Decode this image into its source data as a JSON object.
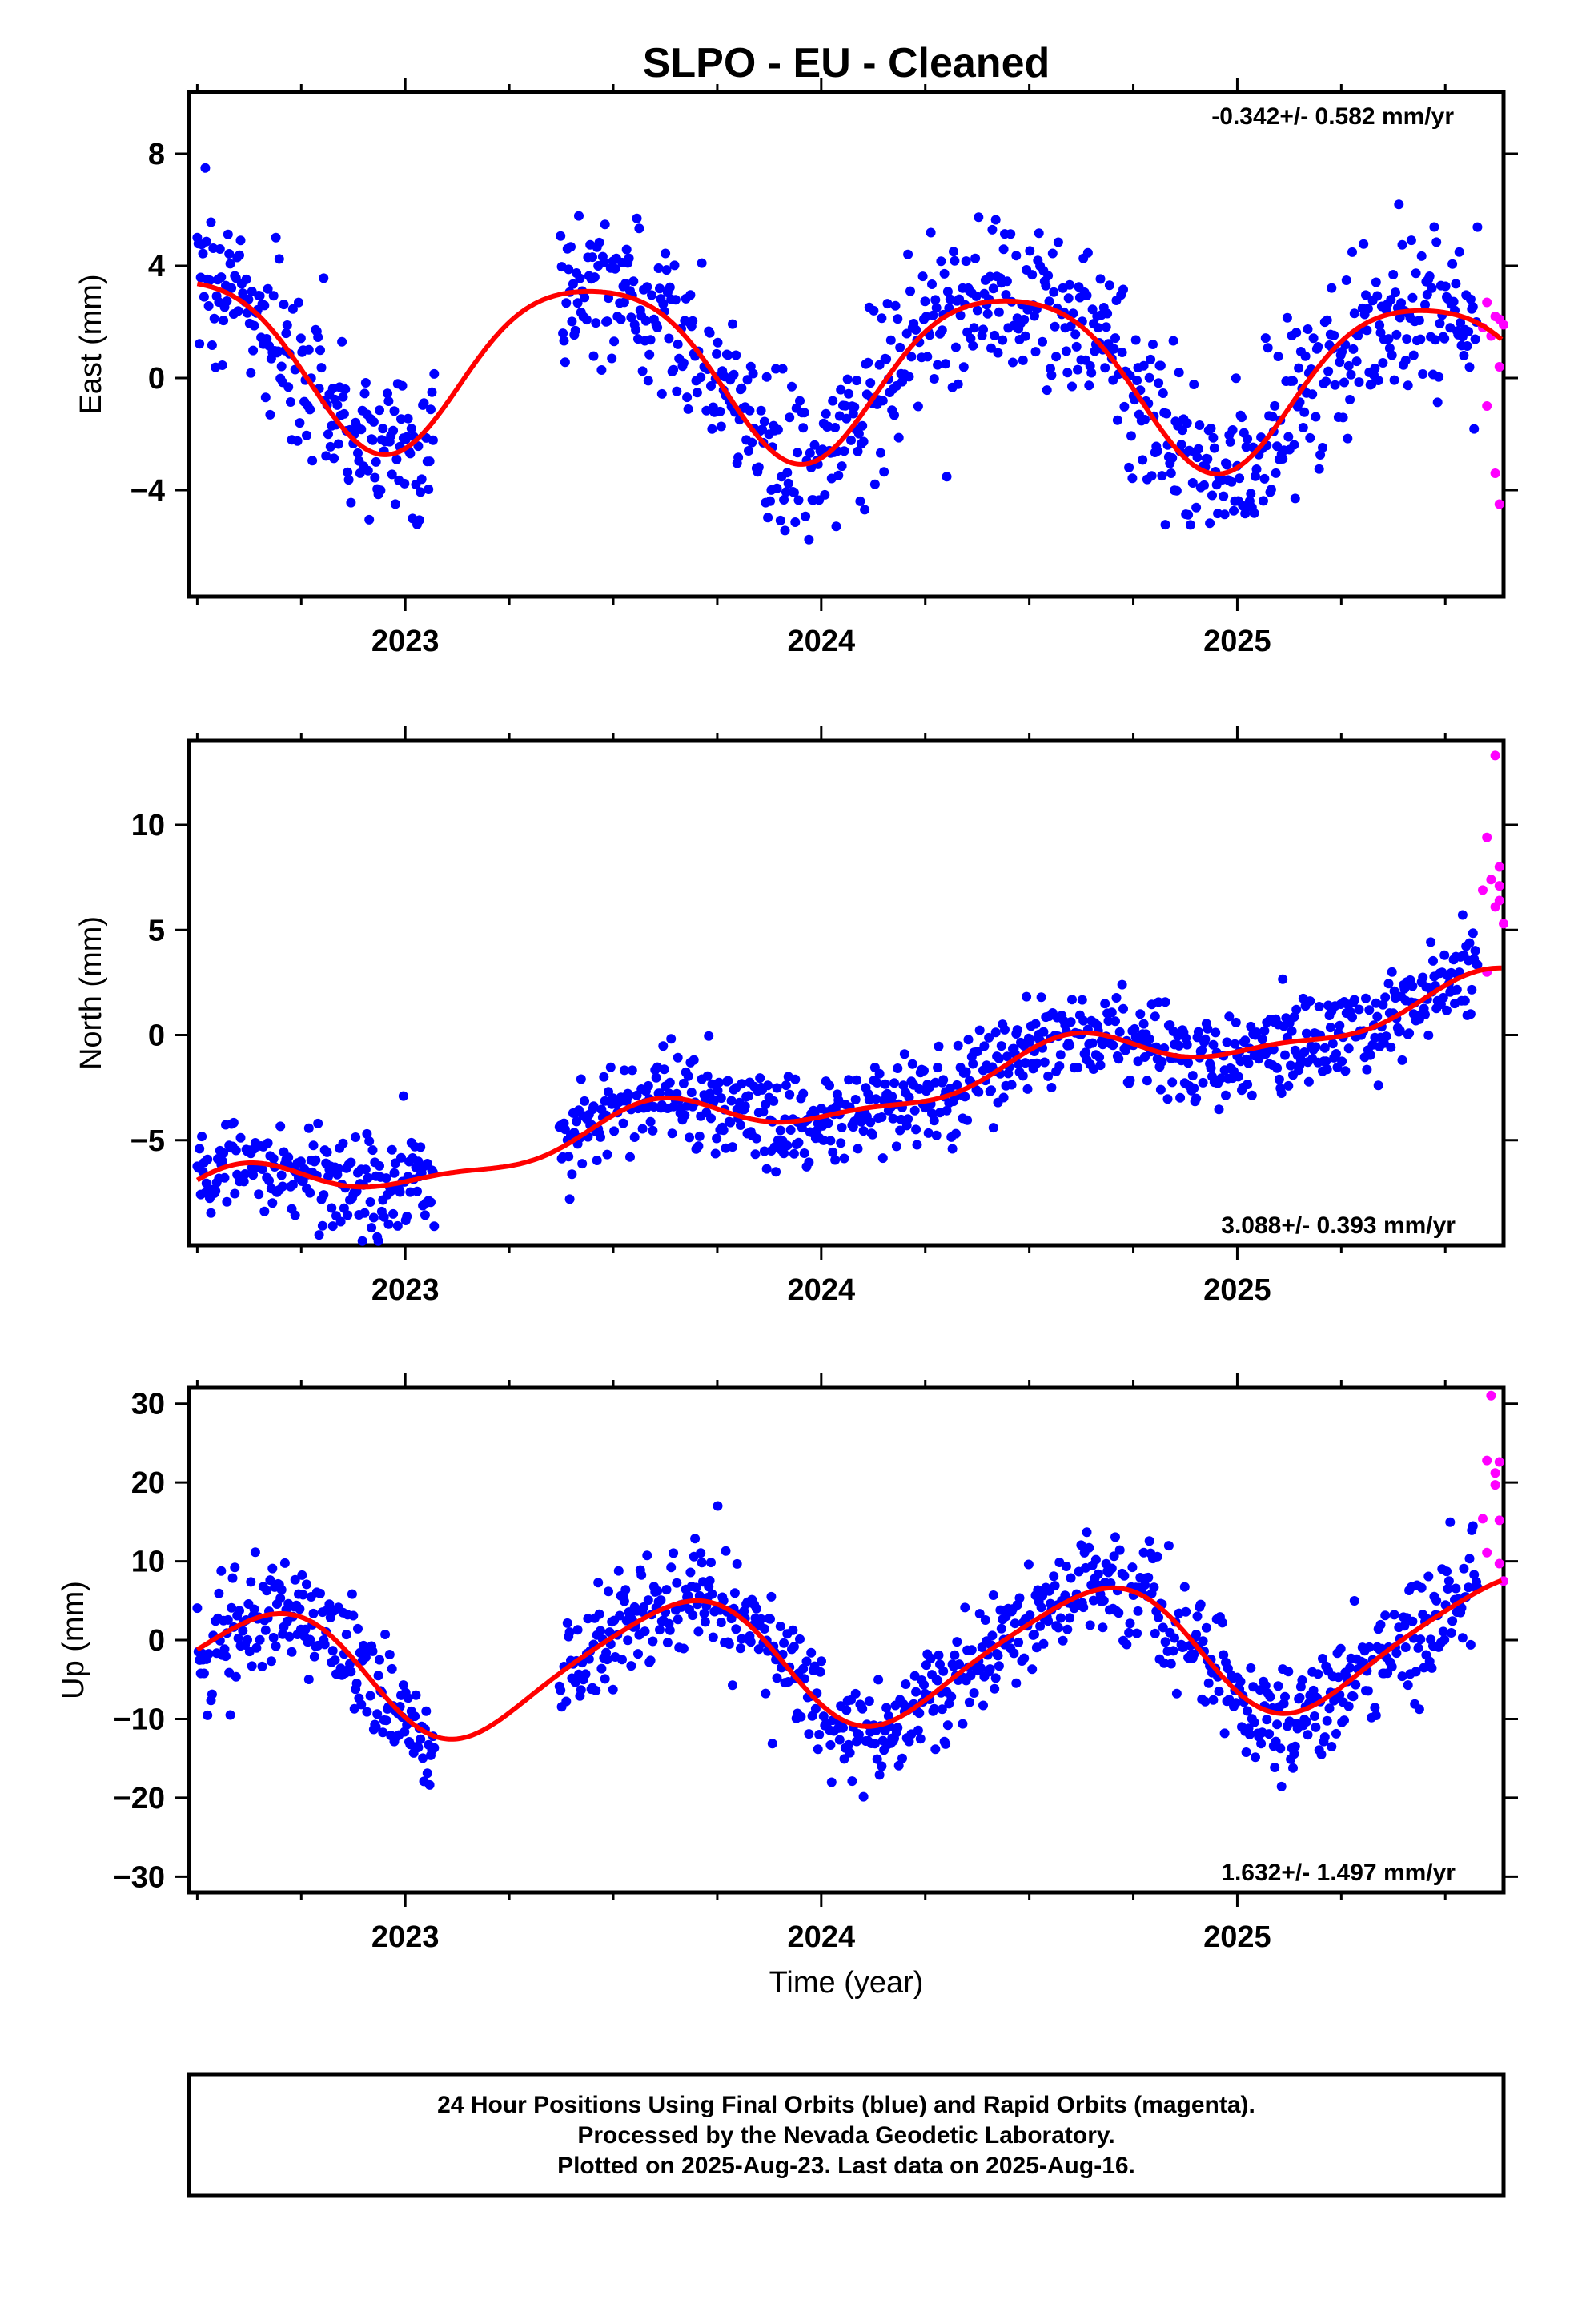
{
  "chart_data": {
    "type": "scatter",
    "title": "SLPO  - EU - Cleaned",
    "xlabel": "Time (year)",
    "xlim": [
      2022.48,
      2025.64
    ],
    "x_ticks": [
      "2023",
      "2024",
      "2025"
    ],
    "colors": {
      "final": "#0000ff",
      "rapid": "#ff00ff",
      "fit": "#ff0000"
    },
    "panels": [
      {
        "ylabel": "East (mm)",
        "ylim": [
          -7.8,
          10.2
        ],
        "y_ticks": [
          -4,
          0,
          4,
          8
        ],
        "rate_label": "-0.342+/- 0.582 mm/yr",
        "rate_position": "top-right",
        "model": {
          "trend": -0.342,
          "ann_amp": 3.0,
          "ann_phase": 2023.45,
          "semi_amp": 0.5,
          "semi_phase": 2023.2,
          "offset": 0.4,
          "noise": 1.5
        },
        "rapid_points": [
          [
            2025.59,
            1.8
          ],
          [
            2025.6,
            2.7
          ],
          [
            2025.6,
            -1.0
          ],
          [
            2025.61,
            1.5
          ],
          [
            2025.62,
            2.2
          ],
          [
            2025.62,
            -3.4
          ],
          [
            2025.63,
            2.1
          ],
          [
            2025.63,
            -4.5
          ],
          [
            2025.64,
            1.9
          ],
          [
            2025.63,
            0.4
          ]
        ]
      },
      {
        "ylabel": "North (mm)",
        "ylim": [
          -10,
          14
        ],
        "y_ticks": [
          -5,
          0,
          5,
          10
        ],
        "rate_label": "3.088+/- 0.393 mm/yr",
        "rate_position": "bottom-right",
        "model": {
          "trend": 3.088,
          "ann_amp": 1.0,
          "ann_phase": 2023.6,
          "semi_amp": 0.4,
          "semi_phase": 2023.1,
          "offset": -3.2,
          "noise": 1.1
        },
        "rapid_points": [
          [
            2025.59,
            6.9
          ],
          [
            2025.6,
            9.4
          ],
          [
            2025.6,
            3.0
          ],
          [
            2025.61,
            7.4
          ],
          [
            2025.62,
            6.1
          ],
          [
            2025.62,
            13.3
          ],
          [
            2025.63,
            7.1
          ],
          [
            2025.63,
            8.0
          ],
          [
            2025.64,
            5.3
          ],
          [
            2025.63,
            6.4
          ]
        ]
      },
      {
        "ylabel": "Up (mm)",
        "ylim": [
          -32,
          32
        ],
        "y_ticks": [
          -30,
          -20,
          -10,
          0,
          10,
          20,
          30
        ],
        "rate_label": "1.632+/- 1.497 mm/yr",
        "rate_position": "bottom-right",
        "model": {
          "trend": 1.632,
          "ann_amp": 8.0,
          "ann_phase": 2023.65,
          "semi_amp": 1.2,
          "semi_phase": 2023.3,
          "offset": -2.5,
          "noise": 3.6
        },
        "rapid_points": [
          [
            2025.59,
            15.4
          ],
          [
            2025.6,
            22.8
          ],
          [
            2025.6,
            11.1
          ],
          [
            2025.61,
            31.0
          ],
          [
            2025.62,
            19.7
          ],
          [
            2025.62,
            21.2
          ],
          [
            2025.63,
            9.7
          ],
          [
            2025.63,
            22.6
          ],
          [
            2025.64,
            7.5
          ],
          [
            2025.63,
            15.2
          ]
        ]
      }
    ],
    "gaps": [
      [
        2023.07,
        2023.37
      ]
    ],
    "final_range": [
      2022.5,
      2025.58
    ]
  },
  "caption": {
    "line1": "24 Hour Positions Using Final Orbits (blue) and Rapid Orbits (magenta).",
    "line2": "Processed by the Nevada Geodetic Laboratory.",
    "line3": "Plotted on 2025-Aug-23. Last data on 2025-Aug-16."
  }
}
